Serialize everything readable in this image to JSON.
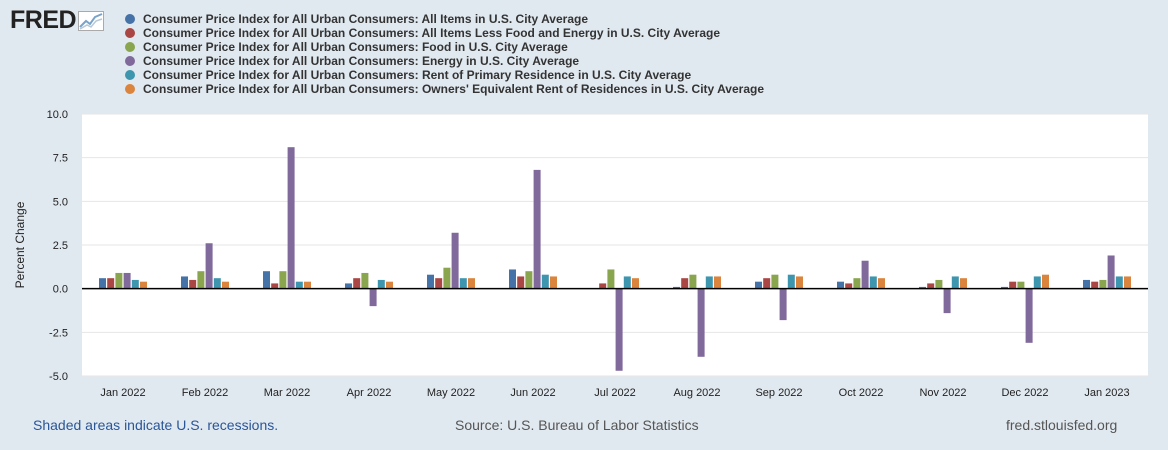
{
  "logo": {
    "text": "FRED"
  },
  "footer": {
    "recessions_note": "Shaded areas indicate U.S. recessions.",
    "source": "Source: U.S. Bureau of Labor Statistics",
    "site": "fred.stlouisfed.org"
  },
  "chart_data": {
    "type": "bar",
    "title": "",
    "xlabel": "",
    "ylabel": "Percent Change",
    "ylim": [
      -5.0,
      10.0
    ],
    "yticks": [
      "10.0",
      "7.5",
      "5.0",
      "2.5",
      "0.0",
      "-2.5",
      "-5.0"
    ],
    "ytick_values": [
      10.0,
      7.5,
      5.0,
      2.5,
      0.0,
      -2.5,
      -5.0
    ],
    "grid": "horizontal",
    "legend_position": "top",
    "categories": [
      "Jan 2022",
      "Feb 2022",
      "Mar 2022",
      "Apr 2022",
      "May 2022",
      "Jun 2022",
      "Jul 2022",
      "Aug 2022",
      "Sep 2022",
      "Oct 2022",
      "Nov 2022",
      "Dec 2022",
      "Jan 2023"
    ],
    "series": [
      {
        "name": "Consumer Price Index for All Urban Consumers: All Items in U.S. City Average",
        "color": "#4572a7",
        "values": [
          0.6,
          0.7,
          1.0,
          0.3,
          0.8,
          1.1,
          0.0,
          0.1,
          0.4,
          0.4,
          0.1,
          0.1,
          0.5
        ]
      },
      {
        "name": "Consumer Price Index for All Urban Consumers: All Items Less Food and Energy in U.S. City Average",
        "color": "#aa4643",
        "values": [
          0.6,
          0.5,
          0.3,
          0.6,
          0.6,
          0.7,
          0.3,
          0.6,
          0.6,
          0.3,
          0.3,
          0.4,
          0.4
        ]
      },
      {
        "name": "Consumer Price Index for All Urban Consumers: Food in U.S. City Average",
        "color": "#89a54e",
        "values": [
          0.9,
          1.0,
          1.0,
          0.9,
          1.2,
          1.0,
          1.1,
          0.8,
          0.8,
          0.6,
          0.5,
          0.4,
          0.5
        ]
      },
      {
        "name": "Consumer Price Index for All Urban Consumers: Energy in U.S. City Average",
        "color": "#80699b",
        "values": [
          0.9,
          2.6,
          8.1,
          -1.0,
          3.2,
          6.8,
          -4.7,
          -3.9,
          -1.8,
          1.6,
          -1.4,
          -3.1,
          1.9
        ]
      },
      {
        "name": "Consumer Price Index for All Urban Consumers: Rent of Primary Residence in U.S. City Average",
        "color": "#3d96ae",
        "values": [
          0.5,
          0.6,
          0.4,
          0.5,
          0.6,
          0.8,
          0.7,
          0.7,
          0.8,
          0.7,
          0.7,
          0.7,
          0.7
        ]
      },
      {
        "name": "Consumer Price Index for All Urban Consumers: Owners' Equivalent Rent of Residences in U.S. City Average",
        "color": "#db843d",
        "values": [
          0.4,
          0.4,
          0.4,
          0.4,
          0.6,
          0.7,
          0.6,
          0.7,
          0.7,
          0.6,
          0.6,
          0.8,
          0.7
        ]
      }
    ]
  }
}
